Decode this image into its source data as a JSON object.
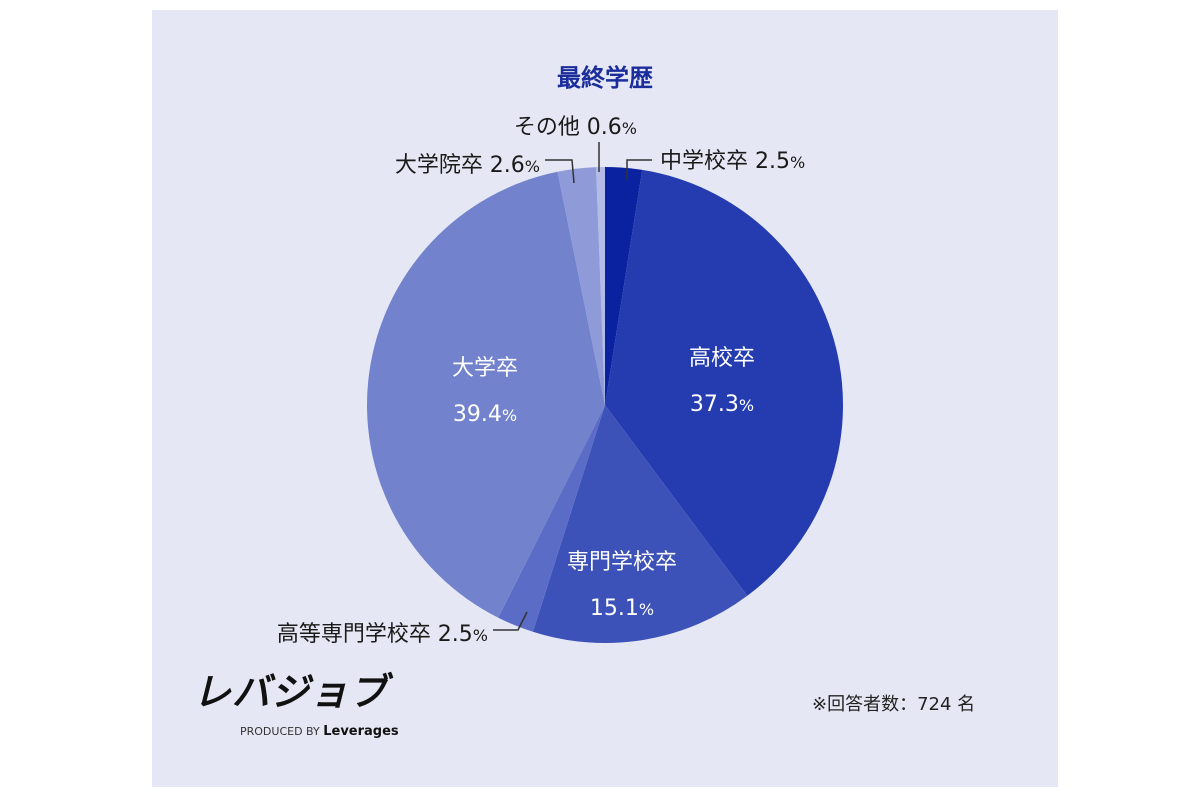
{
  "chart_data": {
    "type": "pie",
    "title": "最終学歴",
    "start_angle": "top",
    "direction": "clockwise",
    "slices": [
      {
        "label": "中学校卒",
        "value": 2.5,
        "display": "2.5",
        "color": "#0a22a0"
      },
      {
        "label": "高校卒",
        "value": 37.3,
        "display": "37.3",
        "color": "#243cb0"
      },
      {
        "label": "専門学校卒",
        "value": 15.1,
        "display": "15.1",
        "color": "#3d52b8"
      },
      {
        "label": "高等専門学校卒",
        "value": 2.5,
        "display": "2.5",
        "color": "#5a6cc6"
      },
      {
        "label": "大学卒",
        "value": 39.4,
        "display": "39.4",
        "color": "#7282cc"
      },
      {
        "label": "大学院卒",
        "value": 2.6,
        "display": "2.6",
        "color": "#8e9bd8"
      },
      {
        "label": "その他",
        "value": 0.6,
        "display": "0.6",
        "color": "#b3bce6"
      }
    ],
    "unit": "%"
  },
  "note": "※回答者数：724 名",
  "logo": {
    "name": "レバジョブ",
    "sub_prefix": "PRODUCED BY",
    "sub_brand": "Leverages"
  }
}
